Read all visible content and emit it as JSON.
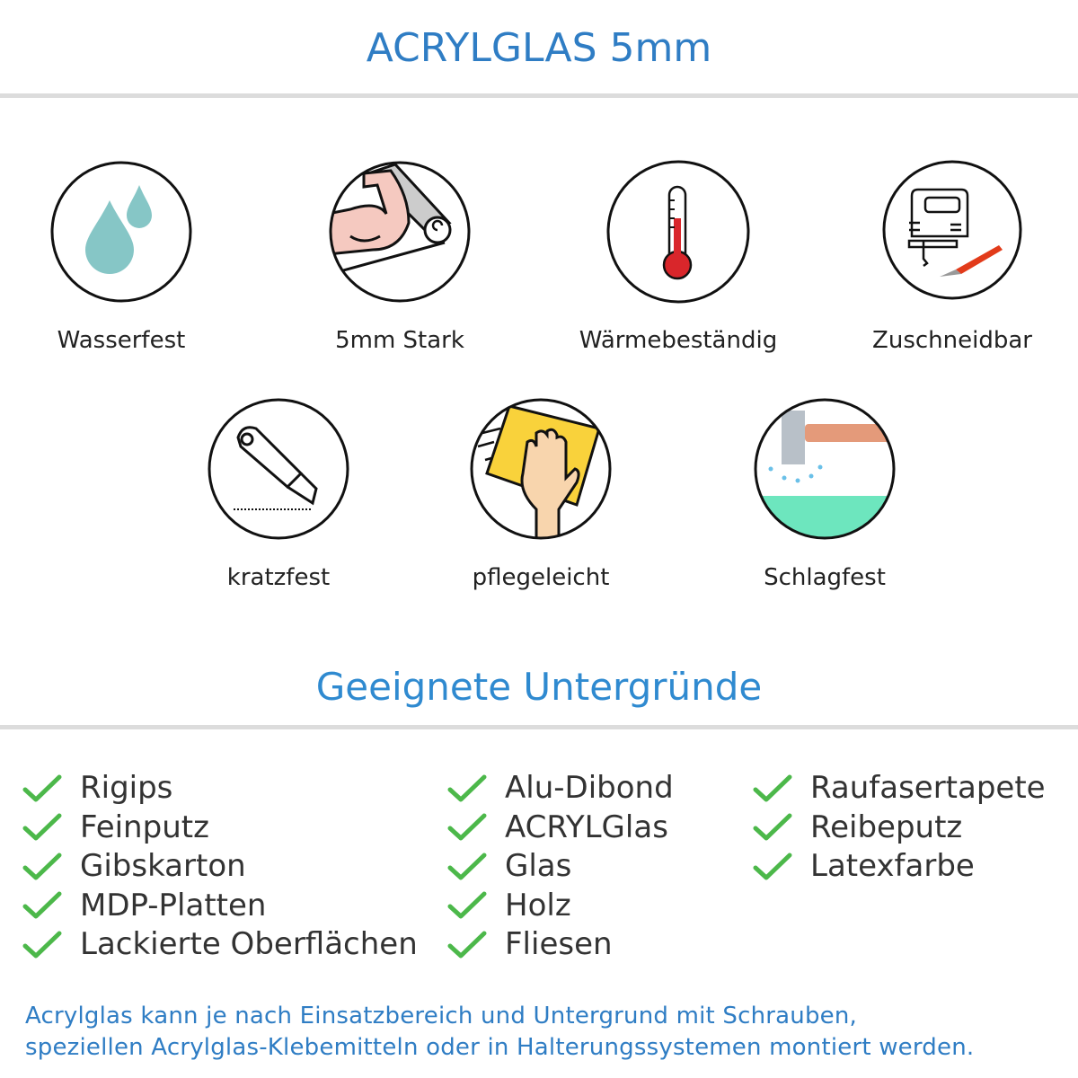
{
  "header": {
    "title": "ACRYLGLAS 5mm"
  },
  "features": [
    {
      "label": "Wasserfest",
      "icon": "water-drops-icon"
    },
    {
      "label": "5mm Stark",
      "icon": "strong-arm-icon"
    },
    {
      "label": "Wärmebeständig",
      "icon": "thermometer-icon"
    },
    {
      "label": "Zuschneidbar",
      "icon": "jigsaw-cutter-icon"
    },
    {
      "label": "kratzfest",
      "icon": "cutter-knife-icon"
    },
    {
      "label": "pflegeleicht",
      "icon": "cleaning-hand-icon"
    },
    {
      "label": "Schlagfest",
      "icon": "hammer-impact-icon"
    }
  ],
  "surfaces": {
    "title": "Geeignete Untergründe",
    "columns": [
      [
        "Rigips",
        "Feinputz",
        "Gibskarton",
        "MDP-Platten",
        "Lackierte Oberflächen"
      ],
      [
        "Alu-Dibond",
        "ACRYLGlas",
        "Glas",
        "Holz",
        "Fliesen"
      ],
      [
        "Raufasertapete",
        "Reibeputz",
        "Latexfarbe"
      ]
    ],
    "check_color": "#4cb84a"
  },
  "footer": {
    "lines": [
      "Acrylglas kann je nach Einsatzbereich und Untergrund mit Schrauben,",
      "speziellen Acrylglas-Klebemitteln oder in Halterungssystemen montiert werden."
    ]
  },
  "colors": {
    "accent": "#2f7dc4"
  }
}
